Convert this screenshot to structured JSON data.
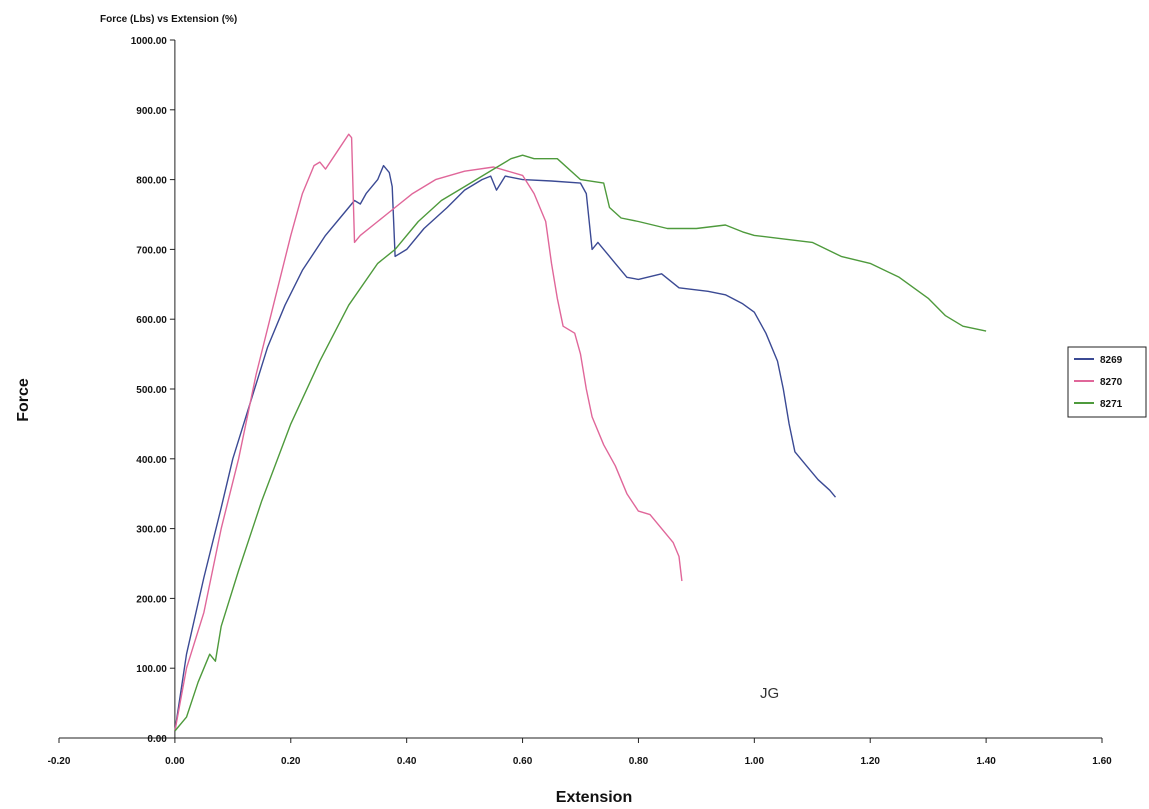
{
  "chart_data": {
    "type": "line",
    "title": "Force (Lbs) vs Extension (%)",
    "xlabel": "Extension",
    "ylabel": "Force",
    "xlim": [
      -0.2,
      1.6
    ],
    "ylim": [
      0,
      1000
    ],
    "x_ticks": [
      "-0.20",
      "0.00",
      "0.20",
      "0.40",
      "0.60",
      "0.80",
      "1.00",
      "1.20",
      "1.40",
      "1.60"
    ],
    "y_ticks": [
      "0.00",
      "100.00",
      "200.00",
      "300.00",
      "400.00",
      "500.00",
      "600.00",
      "700.00",
      "800.00",
      "900.00",
      "1000.00"
    ],
    "grid": false,
    "legend_position": "right",
    "annotation": "JG",
    "series": [
      {
        "name": "8269",
        "color": "#3b4a94",
        "points": [
          [
            0,
            10
          ],
          [
            0.02,
            120
          ],
          [
            0.05,
            230
          ],
          [
            0.08,
            330
          ],
          [
            0.1,
            400
          ],
          [
            0.13,
            480
          ],
          [
            0.16,
            560
          ],
          [
            0.19,
            620
          ],
          [
            0.22,
            670
          ],
          [
            0.26,
            720
          ],
          [
            0.29,
            750
          ],
          [
            0.31,
            770
          ],
          [
            0.32,
            765
          ],
          [
            0.33,
            780
          ],
          [
            0.35,
            800
          ],
          [
            0.36,
            820
          ],
          [
            0.37,
            810
          ],
          [
            0.375,
            790
          ],
          [
            0.38,
            690
          ],
          [
            0.4,
            700
          ],
          [
            0.43,
            730
          ],
          [
            0.47,
            760
          ],
          [
            0.5,
            785
          ],
          [
            0.53,
            800
          ],
          [
            0.545,
            805
          ],
          [
            0.555,
            785
          ],
          [
            0.57,
            805
          ],
          [
            0.6,
            800
          ],
          [
            0.65,
            798
          ],
          [
            0.7,
            795
          ],
          [
            0.71,
            780
          ],
          [
            0.72,
            700
          ],
          [
            0.73,
            710
          ],
          [
            0.74,
            700
          ],
          [
            0.76,
            680
          ],
          [
            0.78,
            660
          ],
          [
            0.8,
            657
          ],
          [
            0.84,
            665
          ],
          [
            0.87,
            645
          ],
          [
            0.92,
            640
          ],
          [
            0.95,
            635
          ],
          [
            0.98,
            622
          ],
          [
            1.0,
            610
          ],
          [
            1.02,
            580
          ],
          [
            1.04,
            540
          ],
          [
            1.05,
            500
          ],
          [
            1.06,
            450
          ],
          [
            1.07,
            410
          ],
          [
            1.09,
            390
          ],
          [
            1.11,
            370
          ],
          [
            1.13,
            355
          ],
          [
            1.14,
            345
          ]
        ]
      },
      {
        "name": "8270",
        "color": "#e0679a",
        "points": [
          [
            0,
            10
          ],
          [
            0.02,
            100
          ],
          [
            0.05,
            180
          ],
          [
            0.08,
            300
          ],
          [
            0.11,
            400
          ],
          [
            0.14,
            520
          ],
          [
            0.17,
            620
          ],
          [
            0.2,
            720
          ],
          [
            0.22,
            780
          ],
          [
            0.24,
            820
          ],
          [
            0.25,
            825
          ],
          [
            0.26,
            815
          ],
          [
            0.28,
            840
          ],
          [
            0.3,
            865
          ],
          [
            0.305,
            860
          ],
          [
            0.31,
            710
          ],
          [
            0.32,
            720
          ],
          [
            0.35,
            740
          ],
          [
            0.38,
            760
          ],
          [
            0.41,
            780
          ],
          [
            0.45,
            800
          ],
          [
            0.5,
            812
          ],
          [
            0.55,
            818
          ],
          [
            0.6,
            806
          ],
          [
            0.62,
            780
          ],
          [
            0.64,
            740
          ],
          [
            0.65,
            680
          ],
          [
            0.66,
            630
          ],
          [
            0.67,
            590
          ],
          [
            0.69,
            580
          ],
          [
            0.7,
            550
          ],
          [
            0.71,
            500
          ],
          [
            0.72,
            460
          ],
          [
            0.74,
            420
          ],
          [
            0.76,
            390
          ],
          [
            0.78,
            350
          ],
          [
            0.8,
            325
          ],
          [
            0.82,
            320
          ],
          [
            0.84,
            300
          ],
          [
            0.86,
            280
          ],
          [
            0.87,
            260
          ],
          [
            0.875,
            225
          ]
        ]
      },
      {
        "name": "8271",
        "color": "#4e9a3c",
        "points": [
          [
            0,
            10
          ],
          [
            0.02,
            30
          ],
          [
            0.04,
            80
          ],
          [
            0.06,
            120
          ],
          [
            0.07,
            110
          ],
          [
            0.08,
            160
          ],
          [
            0.11,
            240
          ],
          [
            0.15,
            340
          ],
          [
            0.2,
            450
          ],
          [
            0.25,
            540
          ],
          [
            0.3,
            620
          ],
          [
            0.35,
            680
          ],
          [
            0.38,
            700
          ],
          [
            0.42,
            740
          ],
          [
            0.46,
            770
          ],
          [
            0.5,
            790
          ],
          [
            0.55,
            815
          ],
          [
            0.58,
            830
          ],
          [
            0.6,
            835
          ],
          [
            0.62,
            830
          ],
          [
            0.66,
            830
          ],
          [
            0.7,
            800
          ],
          [
            0.74,
            795
          ],
          [
            0.75,
            760
          ],
          [
            0.77,
            745
          ],
          [
            0.8,
            740
          ],
          [
            0.85,
            730
          ],
          [
            0.9,
            730
          ],
          [
            0.95,
            735
          ],
          [
            0.98,
            725
          ],
          [
            1.0,
            720
          ],
          [
            1.05,
            715
          ],
          [
            1.1,
            710
          ],
          [
            1.15,
            690
          ],
          [
            1.2,
            680
          ],
          [
            1.25,
            660
          ],
          [
            1.3,
            630
          ],
          [
            1.33,
            605
          ],
          [
            1.36,
            590
          ],
          [
            1.4,
            583
          ]
        ]
      }
    ]
  }
}
